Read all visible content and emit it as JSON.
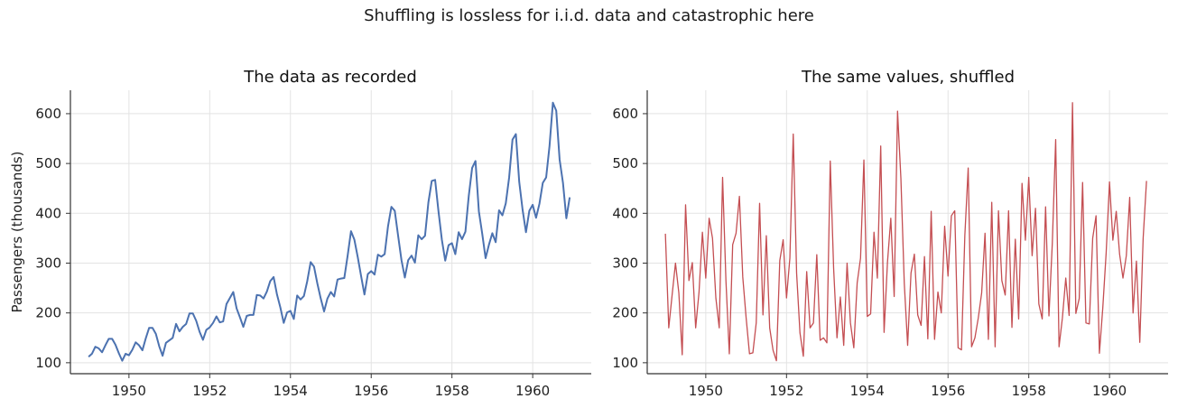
{
  "figure": {
    "suptitle": "Shuffling is lossless for i.i.d. data and catastrophic here"
  },
  "chart_data": [
    {
      "type": "line",
      "title": "The data as recorded",
      "xlabel": "",
      "ylabel": "Passengers (thousands)",
      "xlim": [
        1948.55,
        1961.45
      ],
      "ylim": [
        78,
        647
      ],
      "xticks": [
        1950,
        1952,
        1954,
        1956,
        1958,
        1960
      ],
      "xtick_labels": [
        "1950",
        "1952",
        "1954",
        "1956",
        "1958",
        "1960"
      ],
      "yticks": [
        100,
        200,
        300,
        400,
        500,
        600
      ],
      "ytick_labels": [
        "100",
        "200",
        "300",
        "400",
        "500",
        "600"
      ],
      "grid": true,
      "color": "#4c72b0",
      "x_start": 1949.0,
      "x_step": 0.08333,
      "series": [
        {
          "values": [
            112,
            118,
            132,
            129,
            121,
            135,
            148,
            148,
            136,
            119,
            104,
            118,
            115,
            126,
            141,
            135,
            125,
            149,
            170,
            170,
            158,
            133,
            114,
            140,
            145,
            150,
            178,
            163,
            172,
            178,
            199,
            199,
            184,
            162,
            146,
            166,
            171,
            180,
            193,
            181,
            183,
            218,
            230,
            242,
            209,
            191,
            172,
            194,
            196,
            196,
            236,
            235,
            229,
            243,
            264,
            272,
            237,
            211,
            180,
            201,
            204,
            188,
            235,
            227,
            234,
            264,
            302,
            293,
            259,
            229,
            203,
            229,
            242,
            233,
            267,
            269,
            270,
            315,
            364,
            347,
            312,
            274,
            237,
            278,
            284,
            277,
            317,
            313,
            318,
            374,
            413,
            405,
            355,
            306,
            271,
            306,
            315,
            301,
            356,
            348,
            355,
            422,
            465,
            467,
            404,
            347,
            305,
            336,
            340,
            318,
            362,
            348,
            363,
            435,
            491,
            505,
            404,
            359,
            310,
            337,
            360,
            342,
            406,
            396,
            420,
            472,
            548,
            559,
            463,
            407,
            362,
            405,
            417,
            391,
            419,
            461,
            472,
            535,
            622,
            606,
            508,
            461,
            390,
            432
          ]
        }
      ]
    },
    {
      "type": "line",
      "title": "The same values, shuffled",
      "xlabel": "",
      "ylabel": "",
      "xlim": [
        1948.55,
        1961.45
      ],
      "ylim": [
        78,
        647
      ],
      "xticks": [
        1950,
        1952,
        1954,
        1956,
        1958,
        1960
      ],
      "xtick_labels": [
        "1950",
        "1952",
        "1954",
        "1956",
        "1958",
        "1960"
      ],
      "yticks": [
        100,
        200,
        300,
        400,
        500,
        600
      ],
      "ytick_labels": [
        "100",
        "200",
        "300",
        "400",
        "500",
        "600"
      ],
      "grid": true,
      "color": "#c44e52",
      "x_start": 1949.0,
      "x_step": 0.08333,
      "series": [
        {
          "values": [
            359,
            170,
            236,
            300,
            240,
            116,
            417,
            265,
            301,
            170,
            242,
            362,
            270,
            390,
            350,
            230,
            170,
            472,
            264,
            118,
            337,
            360,
            434,
            272,
            190,
            118,
            120,
            180,
            420,
            196,
            355,
            170,
            125,
            104,
            305,
            347,
            230,
            310,
            559,
            280,
            160,
            113,
            283,
            170,
            180,
            317,
            145,
            150,
            140,
            505,
            290,
            150,
            232,
            135,
            300,
            180,
            130,
            260,
            310,
            507,
            193,
            198,
            362,
            270,
            535,
            161,
            301,
            390,
            233,
            605,
            470,
            260,
            135,
            280,
            318,
            196,
            175,
            313,
            148,
            404,
            147,
            242,
            200,
            374,
            274,
            395,
            405,
            130,
            126,
            355,
            491,
            132,
            150,
            190,
            240,
            360,
            147,
            422,
            132,
            405,
            265,
            236,
            405,
            171,
            348,
            188,
            460,
            346,
            472,
            315,
            410,
            218,
            188,
            413,
            194,
            340,
            548,
            132,
            190,
            270,
            195,
            622,
            199,
            229,
            462,
            180,
            178,
            350,
            395,
            119,
            210,
            320,
            463,
            346,
            404,
            318,
            270,
            315,
            432,
            200,
            304,
            141,
            350,
            465
          ]
        }
      ]
    }
  ]
}
